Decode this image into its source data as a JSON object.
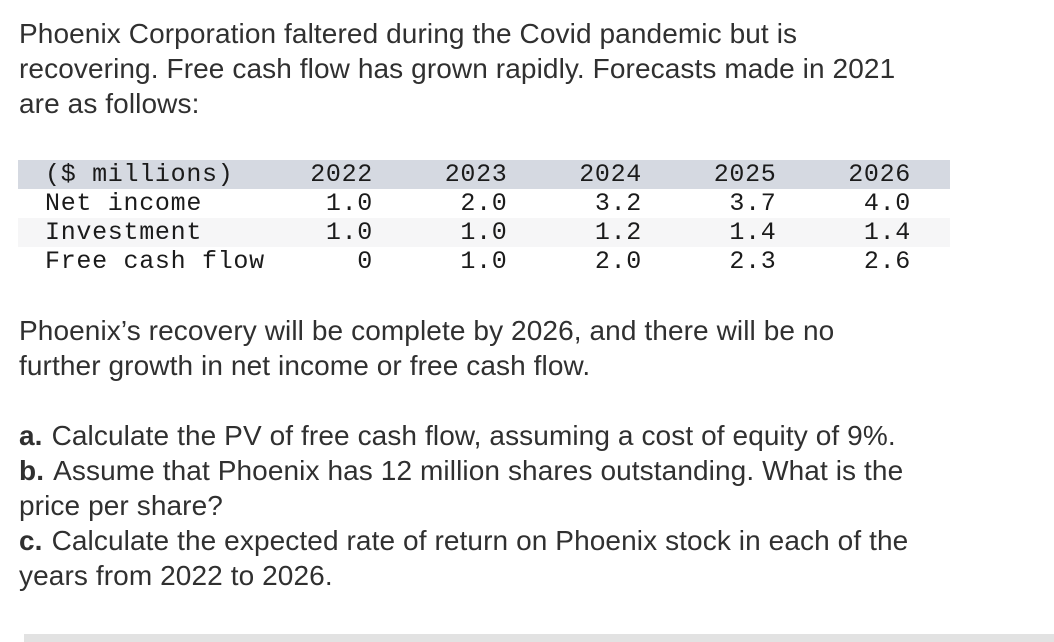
{
  "intro": {
    "lines": [
      "Phoenix Corporation faltered during the Covid pandemic but is",
      "recovering. Free cash flow has grown rapidly. Forecasts made in 2021",
      "are as follows:"
    ]
  },
  "table": {
    "unit_label": "($ millions)",
    "columns": [
      "2022",
      "2023",
      "2024",
      "2025",
      "2026"
    ],
    "rows": [
      {
        "label": "Net income",
        "values": [
          "1.0",
          "2.0",
          "3.2",
          "3.7",
          "4.0"
        ]
      },
      {
        "label": "Investment",
        "values": [
          "1.0",
          "1.0",
          "1.2",
          "1.4",
          "1.4"
        ]
      },
      {
        "label": "Free cash flow",
        "values": [
          "0",
          "1.0",
          "2.0",
          "2.3",
          "2.6"
        ]
      }
    ],
    "header_bg": "#d5d9e1",
    "stripe_bg": "#f6f6f7"
  },
  "recovery": {
    "lines": [
      "Phoenix’s recovery will be complete by 2026, and there will be no",
      "further growth in net income or free cash flow."
    ]
  },
  "questions": {
    "a": {
      "prefix": "a.",
      "lines": [
        "Calculate the PV of free cash flow, assuming a cost of equity of 9%."
      ]
    },
    "b": {
      "prefix": "b.",
      "lines": [
        "Assume that Phoenix has 12 million shares outstanding. What is the",
        "price per share?"
      ]
    },
    "c": {
      "prefix": "c.",
      "lines": [
        "Calculate the expected rate of return on Phoenix stock in each of the",
        "years from 2022 to 2026."
      ]
    }
  },
  "footer": {
    "divider_color": "#e2e2e2"
  }
}
